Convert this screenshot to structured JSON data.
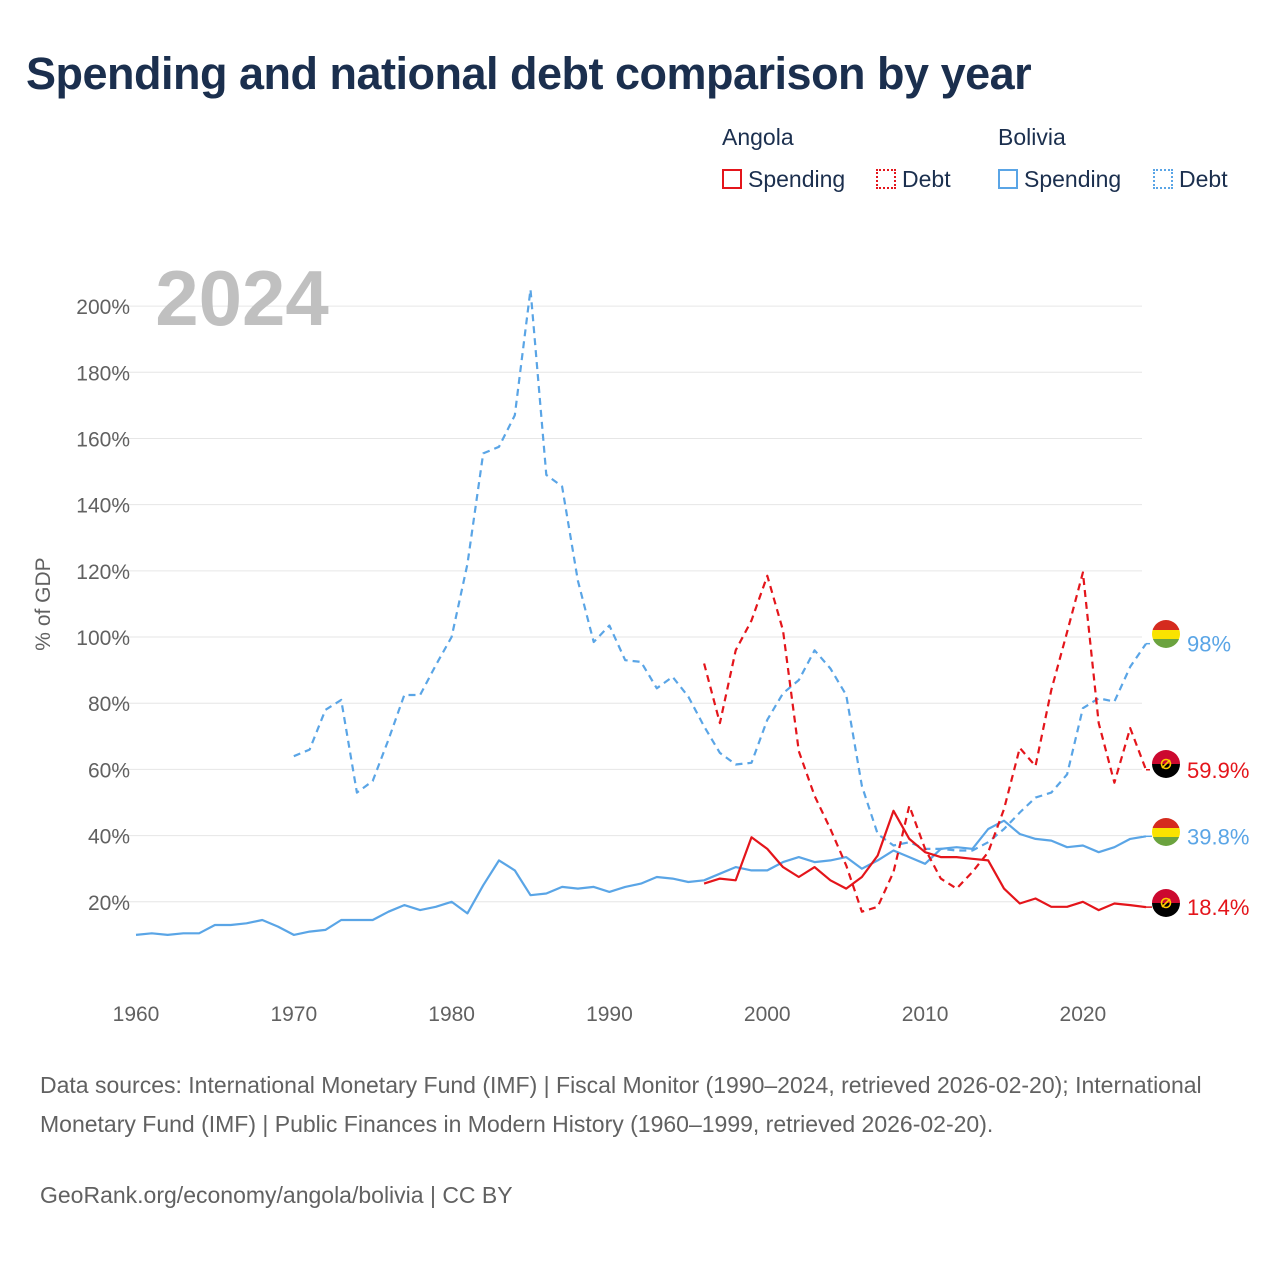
{
  "title": "Spending and national debt comparison by year",
  "legend": {
    "groups": [
      {
        "country": "Angola",
        "color": "#e4151b",
        "items": [
          {
            "label": "Spending",
            "style": "solid"
          },
          {
            "label": "Debt",
            "style": "dotted"
          }
        ]
      },
      {
        "country": "Bolivia",
        "color": "#5aa5e6",
        "items": [
          {
            "label": "Spending",
            "style": "solid"
          },
          {
            "label": "Debt",
            "style": "dotted"
          }
        ]
      }
    ]
  },
  "chart_data": {
    "type": "line",
    "year_label": "2024",
    "ylabel": "% of GDP",
    "xlim": [
      1960,
      2024
    ],
    "ylim": [
      0,
      210
    ],
    "x_ticks": [
      1960,
      1970,
      1980,
      1990,
      2000,
      2010,
      2020
    ],
    "x_tick_labels": [
      "1960",
      "1970",
      "1980",
      "1990",
      "2000",
      "2010",
      "2020"
    ],
    "y_ticks": [
      20,
      40,
      60,
      80,
      100,
      120,
      140,
      160,
      180,
      200
    ],
    "y_tick_labels": [
      "20%",
      "40%",
      "60%",
      "80%",
      "100%",
      "120%",
      "140%",
      "160%",
      "180%",
      "200%"
    ],
    "series": [
      {
        "name": "Bolivia Debt",
        "country": "Bolivia",
        "metric": "Debt",
        "color": "#5aa5e6",
        "dash": true,
        "end_label": "98%",
        "x": [
          1970,
          1971,
          1972,
          1973,
          1974,
          1975,
          1976,
          1977,
          1978,
          1979,
          1980,
          1981,
          1982,
          1983,
          1984,
          1985,
          1986,
          1987,
          1988,
          1989,
          1990,
          1991,
          1992,
          1993,
          1994,
          1995,
          1996,
          1997,
          1998,
          1999,
          2000,
          2001,
          2002,
          2003,
          2004,
          2005,
          2006,
          2007,
          2008,
          2009,
          2010,
          2011,
          2012,
          2013,
          2014,
          2015,
          2016,
          2017,
          2018,
          2019,
          2020,
          2021,
          2022,
          2023,
          2024
        ],
        "y": [
          64,
          66,
          78,
          81,
          53,
          56.5,
          69,
          82.5,
          82.5,
          91.5,
          100,
          122,
          155.5,
          157.5,
          167,
          205,
          149,
          145.5,
          117,
          98.5,
          103.5,
          93,
          92.5,
          84.5,
          88,
          82,
          73,
          65,
          61.5,
          62,
          75,
          83,
          87,
          96,
          90.5,
          82.5,
          55,
          40.5,
          37,
          38,
          36,
          36,
          35.5,
          35.5,
          38,
          42,
          47,
          51.5,
          53,
          58.5,
          78.5,
          81.5,
          80.5,
          91,
          98
        ]
      },
      {
        "name": "Bolivia Spending",
        "country": "Bolivia",
        "metric": "Spending",
        "color": "#5aa5e6",
        "dash": false,
        "end_label": "39.8%",
        "x": [
          1960,
          1961,
          1962,
          1963,
          1964,
          1965,
          1966,
          1967,
          1968,
          1969,
          1970,
          1971,
          1972,
          1973,
          1974,
          1975,
          1976,
          1977,
          1978,
          1979,
          1980,
          1981,
          1982,
          1983,
          1984,
          1985,
          1986,
          1987,
          1988,
          1989,
          1990,
          1991,
          1992,
          1993,
          1994,
          1995,
          1996,
          1997,
          1998,
          1999,
          2000,
          2001,
          2002,
          2003,
          2004,
          2005,
          2006,
          2007,
          2008,
          2009,
          2010,
          2011,
          2012,
          2013,
          2014,
          2015,
          2016,
          2017,
          2018,
          2019,
          2020,
          2021,
          2022,
          2023,
          2024
        ],
        "y": [
          10,
          10.5,
          10,
          10.5,
          10.5,
          13,
          13,
          13.5,
          14.5,
          12.5,
          10,
          11,
          11.5,
          14.5,
          14.5,
          14.5,
          17,
          19,
          17.5,
          18.5,
          20,
          16.5,
          25,
          32.5,
          29.5,
          22,
          22.5,
          24.5,
          24,
          24.5,
          23,
          24.5,
          25.5,
          27.5,
          27,
          26,
          26.5,
          28.5,
          30.5,
          29.5,
          29.5,
          32,
          33.5,
          32,
          32.5,
          33.5,
          30,
          32.5,
          35.5,
          33.5,
          31.5,
          36,
          36.5,
          36,
          42,
          44.5,
          40.5,
          39,
          38.5,
          36.5,
          37,
          35,
          36.5,
          39,
          39.8
        ]
      },
      {
        "name": "Angola Debt",
        "country": "Angola",
        "metric": "Debt",
        "color": "#e4151b",
        "dash": true,
        "end_label": "59.9%",
        "x": [
          1996,
          1997,
          1998,
          1999,
          2000,
          2001,
          2002,
          2003,
          2004,
          2005,
          2006,
          2007,
          2008,
          2009,
          2010,
          2011,
          2012,
          2013,
          2014,
          2015,
          2016,
          2017,
          2018,
          2019,
          2020,
          2021,
          2022,
          2023,
          2024
        ],
        "y": [
          92,
          74,
          96,
          105,
          118.5,
          102,
          65.5,
          52,
          42,
          31,
          17,
          18.5,
          29,
          49,
          36,
          27,
          24,
          29,
          35,
          48,
          66.5,
          61,
          84,
          101.5,
          119.5,
          74,
          56,
          72.5,
          59.9
        ]
      },
      {
        "name": "Angola Spending",
        "country": "Angola",
        "metric": "Spending",
        "color": "#e4151b",
        "dash": false,
        "end_label": "18.4%",
        "x": [
          1996,
          1997,
          1998,
          1999,
          2000,
          2001,
          2002,
          2003,
          2004,
          2005,
          2006,
          2007,
          2008,
          2009,
          2010,
          2011,
          2012,
          2013,
          2014,
          2015,
          2016,
          2017,
          2018,
          2019,
          2020,
          2021,
          2022,
          2023,
          2024
        ],
        "y": [
          25.5,
          27,
          26.5,
          39.5,
          36,
          30.5,
          27.5,
          30.5,
          26.5,
          24,
          27.5,
          34,
          47.5,
          39,
          35,
          33.5,
          33.5,
          33,
          32.5,
          24,
          19.5,
          21,
          18.5,
          18.5,
          20,
          17.5,
          19.5,
          19,
          18.4
        ]
      }
    ]
  },
  "sources": "Data sources: International Monetary Fund (IMF) | Fiscal Monitor (1990–2024, retrieved 2026-02-20); International Monetary Fund (IMF) | Public Finances in Modern History (1960–1999, retrieved 2026-02-20).",
  "attribution": "GeoRank.org/economy/angola/bolivia | CC BY"
}
